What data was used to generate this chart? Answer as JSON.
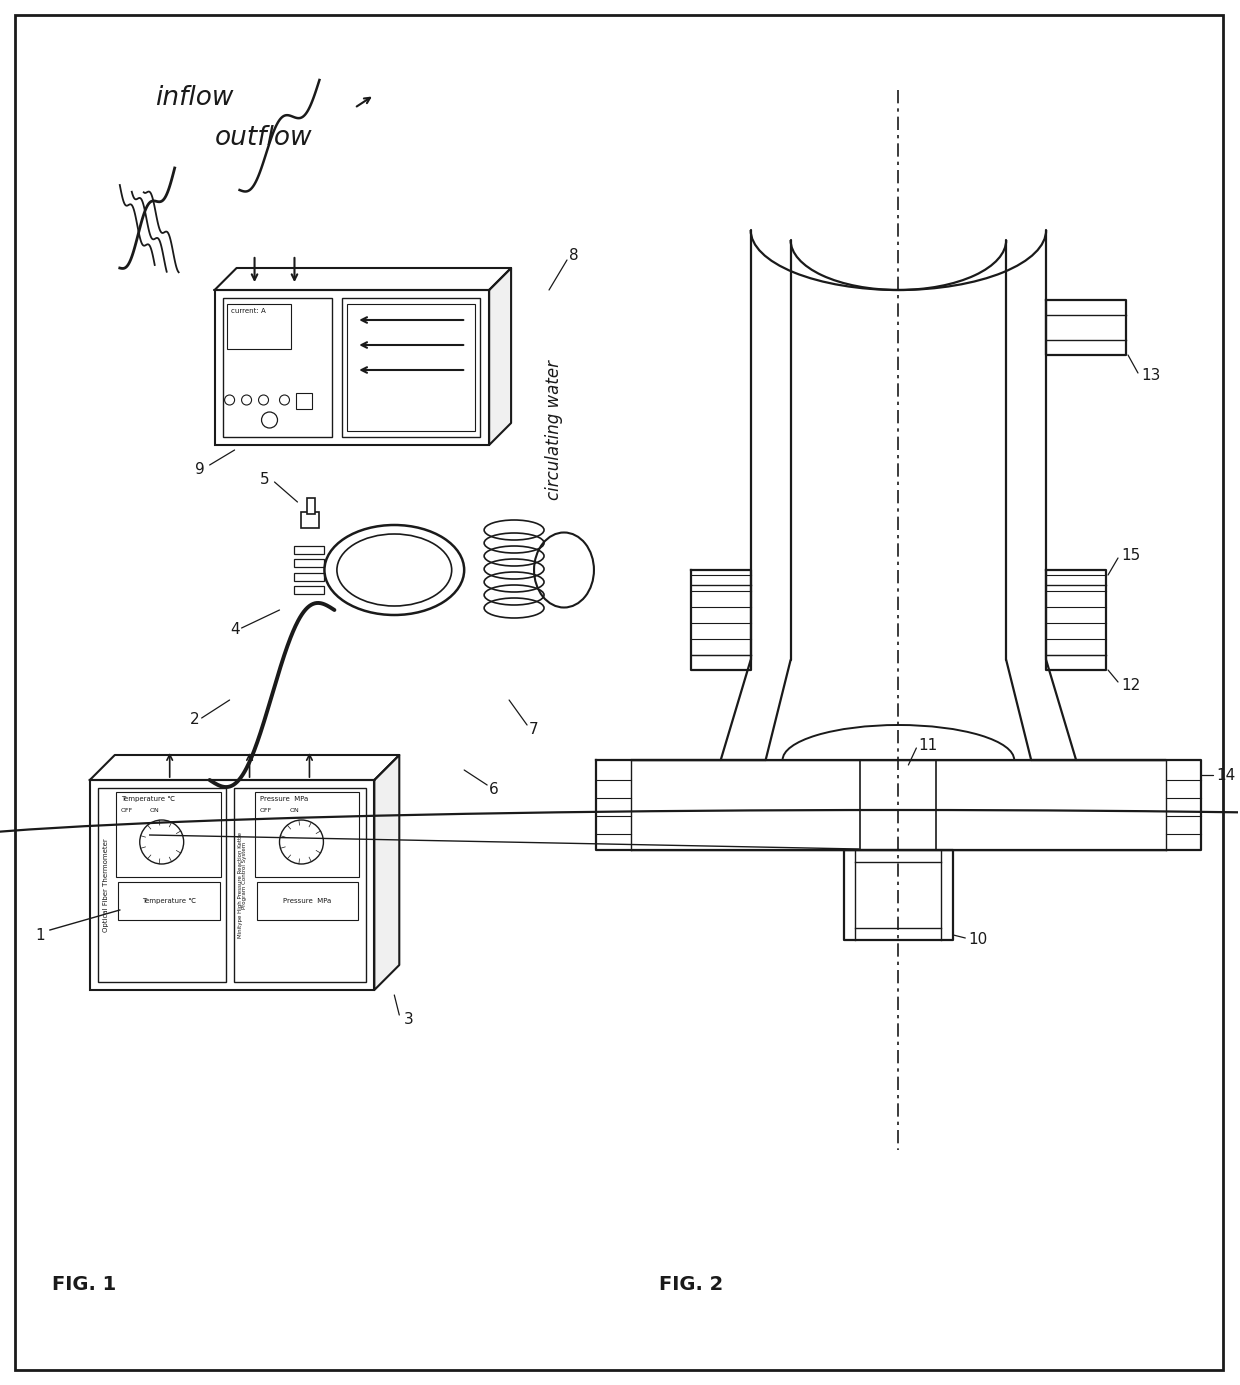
{
  "fig_label1": "FIG. 1",
  "fig_label2": "FIG. 2",
  "bg_color": "#ffffff",
  "lc": "#1a1a1a",
  "labels": {
    "inflow": "inflow",
    "outflow": "outflow",
    "circulating_water": "circulating water",
    "1": "1",
    "2": "2",
    "3": "3",
    "4": "4",
    "5": "5",
    "6": "6",
    "7": "7",
    "8": "8",
    "9": "9",
    "10": "10",
    "11": "11",
    "12": "12",
    "13": "13",
    "14": "14",
    "15": "15"
  }
}
